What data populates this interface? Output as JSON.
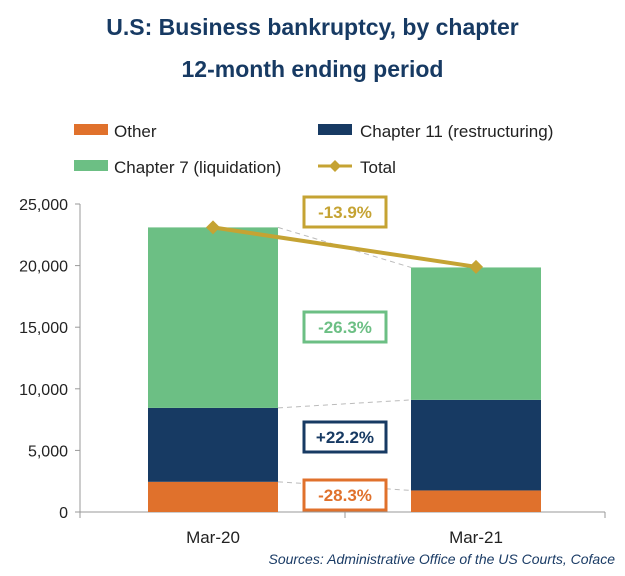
{
  "title": "U.S: Business bankruptcy, by chapter",
  "subtitle": "12-month ending period",
  "source": "Sources: Administrative Office of the US Courts, Coface",
  "colors": {
    "other": "#e0712c",
    "chapter11": "#173a63",
    "chapter7": "#6cbf84",
    "total": "#c5a333",
    "title": "#173a63"
  },
  "chart_data": {
    "type": "bar",
    "stacked": true,
    "categories": [
      "Mar-20",
      "Mar-21"
    ],
    "series": [
      {
        "name": "Other",
        "values": [
          2450,
          1750
        ],
        "color": "#e0712c"
      },
      {
        "name": "Chapter 11 (restructuring)",
        "values": [
          6000,
          7350
        ],
        "color": "#173a63"
      },
      {
        "name": "Chapter 7 (liquidation)",
        "values": [
          14650,
          10750
        ],
        "color": "#6cbf84"
      },
      {
        "name": "Total",
        "type": "line",
        "values": [
          23100,
          19900
        ],
        "color": "#c5a333"
      }
    ],
    "ylim": [
      0,
      25000
    ],
    "yticks": [
      0,
      5000,
      10000,
      15000,
      20000,
      25000
    ],
    "ytick_labels": [
      "0",
      "5,000",
      "10,000",
      "15,000",
      "20,000",
      "25,000"
    ],
    "legend_position": "top",
    "annotations": [
      {
        "text": "-13.9%",
        "series": "Total",
        "color": "#c5a333"
      },
      {
        "text": "-26.3%",
        "series": "Chapter 7 (liquidation)",
        "color": "#6cbf84"
      },
      {
        "text": "+22.2%",
        "series": "Chapter 11 (restructuring)",
        "color": "#173a63"
      },
      {
        "text": "-28.3%",
        "series": "Other",
        "color": "#e0712c"
      }
    ]
  }
}
